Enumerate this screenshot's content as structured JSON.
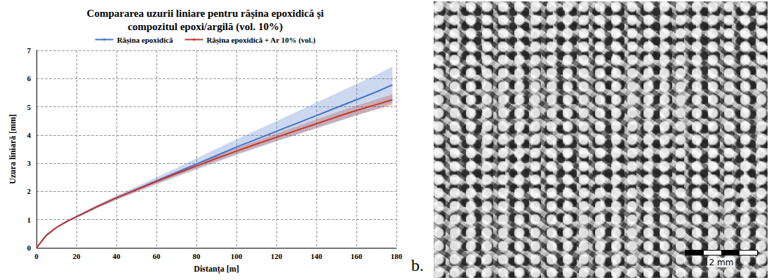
{
  "chart_data": {
    "type": "line",
    "title": "Compararea uzurii liniare pentru rășina epoxidică și compozitul epoxi/argilă (vol. 10%)",
    "xlabel": "Distanța [m]",
    "ylabel": "Uzura liniară [mm]",
    "x": [
      0,
      5,
      10,
      15,
      20,
      30,
      40,
      50,
      60,
      70,
      80,
      90,
      100,
      110,
      120,
      130,
      140,
      150,
      160,
      170,
      178
    ],
    "series": [
      {
        "name": "Rășina epoxidică",
        "color": "#4472c4",
        "values": [
          0,
          0.45,
          0.72,
          0.93,
          1.1,
          1.45,
          1.77,
          2.07,
          2.37,
          2.67,
          2.97,
          3.27,
          3.57,
          3.85,
          4.13,
          4.41,
          4.69,
          4.97,
          5.25,
          5.53,
          5.78
        ],
        "errors": [
          0,
          0.01,
          0.02,
          0.03,
          0.04,
          0.06,
          0.08,
          0.1,
          0.13,
          0.16,
          0.2,
          0.24,
          0.28,
          0.32,
          0.36,
          0.41,
          0.46,
          0.51,
          0.56,
          0.61,
          0.65
        ]
      },
      {
        "name": "Rășina epoxidică + Ar 10% (vol.)",
        "color": "#c0392b",
        "values": [
          0,
          0.45,
          0.72,
          0.93,
          1.1,
          1.45,
          1.77,
          2.06,
          2.35,
          2.63,
          2.9,
          3.17,
          3.43,
          3.68,
          3.92,
          4.16,
          4.4,
          4.64,
          4.87,
          5.08,
          5.25
        ],
        "errors": [
          0,
          0.01,
          0.02,
          0.02,
          0.03,
          0.04,
          0.05,
          0.06,
          0.07,
          0.08,
          0.09,
          0.1,
          0.11,
          0.12,
          0.13,
          0.14,
          0.15,
          0.16,
          0.17,
          0.18,
          0.19
        ]
      }
    ],
    "xlim": [
      0,
      180
    ],
    "xticks": [
      0,
      20,
      40,
      60,
      80,
      100,
      120,
      140,
      160,
      180
    ],
    "ylim": [
      0,
      7
    ],
    "yticks": [
      0,
      1,
      2,
      3,
      4,
      5,
      6,
      7
    ],
    "grid": true,
    "legend": "top",
    "marker": "none"
  },
  "image_panel": {
    "label": "b.",
    "scale_bar": "2 mm"
  }
}
